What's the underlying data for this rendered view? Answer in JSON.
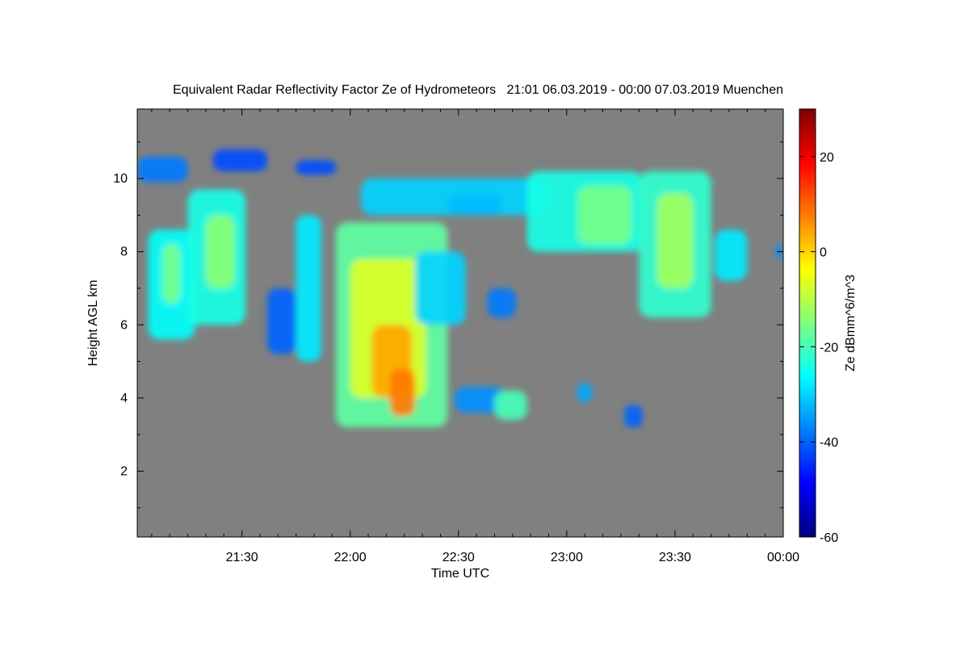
{
  "chart_data": {
    "type": "heatmap",
    "title": "Equivalent Radar Reflectivity Factor Ze of Hydrometeors   21:01 06.03.2019 - 00:00 07.03.2019 Muenchen",
    "xlabel": "Time UTC",
    "ylabel": "Height AGL km",
    "xlim_minutes": [
      1261,
      1440
    ],
    "ylim": [
      0.2,
      11.9
    ],
    "x_ticks": [
      {
        "value": 1290,
        "label": "21:30"
      },
      {
        "value": 1320,
        "label": "22:00"
      },
      {
        "value": 1350,
        "label": "22:30"
      },
      {
        "value": 1380,
        "label": "23:00"
      },
      {
        "value": 1410,
        "label": "23:30"
      },
      {
        "value": 1440,
        "label": "00:00"
      }
    ],
    "y_ticks": [
      {
        "value": 2,
        "label": "2"
      },
      {
        "value": 4,
        "label": "4"
      },
      {
        "value": 6,
        "label": "6"
      },
      {
        "value": 8,
        "label": "8"
      },
      {
        "value": 10,
        "label": "10"
      }
    ],
    "background_color": "#808080",
    "colorbar": {
      "label": "Ze dBmm^6/m^3",
      "range": [
        -60,
        30
      ],
      "ticks": [
        {
          "value": 20,
          "label": "20"
        },
        {
          "value": 0,
          "label": "0"
        },
        {
          "value": -20,
          "label": "-20"
        },
        {
          "value": -40,
          "label": "-40"
        },
        {
          "value": -60,
          "label": "-60"
        }
      ],
      "colors": [
        "#00007f",
        "#0000ff",
        "#007fff",
        "#00ffff",
        "#7fff7f",
        "#ffff00",
        "#ff7f00",
        "#ff0000",
        "#7f0000"
      ]
    },
    "echo_cells": [
      {
        "x": [
          1261,
          1275
        ],
        "y": [
          9.9,
          10.6
        ],
        "ze": -38
      },
      {
        "x": [
          1264,
          1277
        ],
        "y": [
          5.6,
          8.6
        ],
        "ze": -26
      },
      {
        "x": [
          1268,
          1273
        ],
        "y": [
          6.6,
          8.2
        ],
        "ze": -16
      },
      {
        "x": [
          1275,
          1291
        ],
        "y": [
          6.0,
          9.7
        ],
        "ze": -24
      },
      {
        "x": [
          1280,
          1288
        ],
        "y": [
          7.0,
          9.0
        ],
        "ze": -14
      },
      {
        "x": [
          1282,
          1297
        ],
        "y": [
          10.2,
          10.8
        ],
        "ze": -42
      },
      {
        "x": [
          1297,
          1305
        ],
        "y": [
          5.2,
          7.0
        ],
        "ze": -40
      },
      {
        "x": [
          1305,
          1316
        ],
        "y": [
          10.1,
          10.5
        ],
        "ze": -42
      },
      {
        "x": [
          1305,
          1312
        ],
        "y": [
          5.0,
          9.0
        ],
        "ze": -28
      },
      {
        "x": [
          1316,
          1347
        ],
        "y": [
          3.2,
          8.8
        ],
        "ze": -18
      },
      {
        "x": [
          1320,
          1341
        ],
        "y": [
          4.0,
          7.8
        ],
        "ze": -7
      },
      {
        "x": [
          1326,
          1337
        ],
        "y": [
          4.0,
          6.0
        ],
        "ze": 4
      },
      {
        "x": [
          1331,
          1338
        ],
        "y": [
          3.5,
          4.8
        ],
        "ze": 8
      },
      {
        "x": [
          1338,
          1352
        ],
        "y": [
          6.0,
          8.0
        ],
        "ze": -30
      },
      {
        "x": [
          1323,
          1375
        ],
        "y": [
          9.0,
          10.0
        ],
        "ze": -30
      },
      {
        "x": [
          1347,
          1362
        ],
        "y": [
          9.0,
          9.6
        ],
        "ze": -32
      },
      {
        "x": [
          1349,
          1363
        ],
        "y": [
          3.6,
          4.3
        ],
        "ze": -36
      },
      {
        "x": [
          1360,
          1369
        ],
        "y": [
          3.4,
          4.2
        ],
        "ze": -20
      },
      {
        "x": [
          1358,
          1366
        ],
        "y": [
          6.2,
          7.0
        ],
        "ze": -38
      },
      {
        "x": [
          1369,
          1401
        ],
        "y": [
          8.0,
          10.2
        ],
        "ze": -24
      },
      {
        "x": [
          1383,
          1398
        ],
        "y": [
          8.2,
          9.8
        ],
        "ze": -16
      },
      {
        "x": [
          1400,
          1420
        ],
        "y": [
          6.2,
          10.2
        ],
        "ze": -22
      },
      {
        "x": [
          1405,
          1415
        ],
        "y": [
          7.0,
          9.6
        ],
        "ze": -12
      },
      {
        "x": [
          1421,
          1430
        ],
        "y": [
          7.2,
          8.6
        ],
        "ze": -28
      },
      {
        "x": [
          1383,
          1387
        ],
        "y": [
          3.9,
          4.4
        ],
        "ze": -34
      },
      {
        "x": [
          1396,
          1401
        ],
        "y": [
          3.2,
          3.8
        ],
        "ze": -40
      },
      {
        "x": [
          1438,
          1440
        ],
        "y": [
          7.8,
          8.2
        ],
        "ze": -36
      }
    ]
  }
}
